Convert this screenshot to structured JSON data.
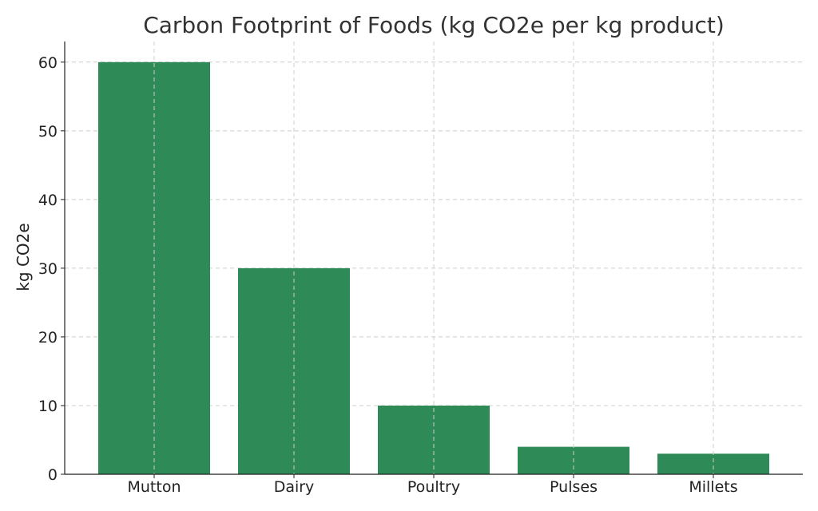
{
  "chart_data": {
    "type": "bar",
    "title": "Carbon Footprint of Foods (kg CO2e per kg product)",
    "xlabel": "",
    "ylabel": "kg CO2e",
    "categories": [
      "Mutton",
      "Dairy",
      "Poultry",
      "Pulses",
      "Millets"
    ],
    "values": [
      60,
      30,
      10,
      4,
      3
    ],
    "ylim": [
      0,
      63
    ],
    "yticks": [
      0,
      10,
      20,
      30,
      40,
      50,
      60
    ],
    "grid": true,
    "bar_color": "#2e8b57"
  }
}
